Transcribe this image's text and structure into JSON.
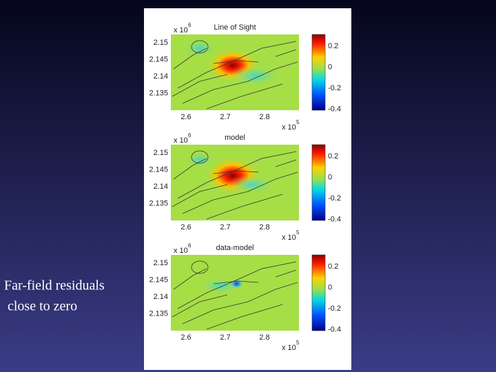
{
  "caption": [
    "Far-field residuals",
    " close to zero"
  ],
  "panels": [
    {
      "title": "Line of Sight",
      "y_multiplier": "x 10",
      "y_exponent": "6",
      "yticks": [
        "2.15",
        "2.145",
        "2.14",
        "2.135"
      ],
      "xticks": [
        "2.6",
        "2.7",
        "2.8"
      ],
      "x_multiplier": "x 10",
      "x_exponent": "5",
      "colorbar_ticks": [
        "0.2",
        "0",
        "-0.2",
        "-0.4"
      ]
    },
    {
      "title": "model",
      "y_multiplier": "x 10",
      "y_exponent": "6",
      "yticks": [
        "2.15",
        "2.145",
        "2.14",
        "2.135"
      ],
      "xticks": [
        "2.6",
        "2.7",
        "2.8"
      ],
      "x_multiplier": "x 10",
      "x_exponent": "5",
      "colorbar_ticks": [
        "0.2",
        "0",
        "-0.2",
        "-0.4"
      ]
    },
    {
      "title": "data-model",
      "y_multiplier": "x 10",
      "y_exponent": "6",
      "yticks": [
        "2.15",
        "2.145",
        "2.14",
        "2.135"
      ],
      "xticks": [
        "2.6",
        "2.7",
        "2.8"
      ],
      "x_multiplier": "x 10",
      "x_exponent": "5",
      "colorbar_ticks": [
        "0.2",
        "0",
        "-0.2",
        "-0.4"
      ]
    }
  ]
}
